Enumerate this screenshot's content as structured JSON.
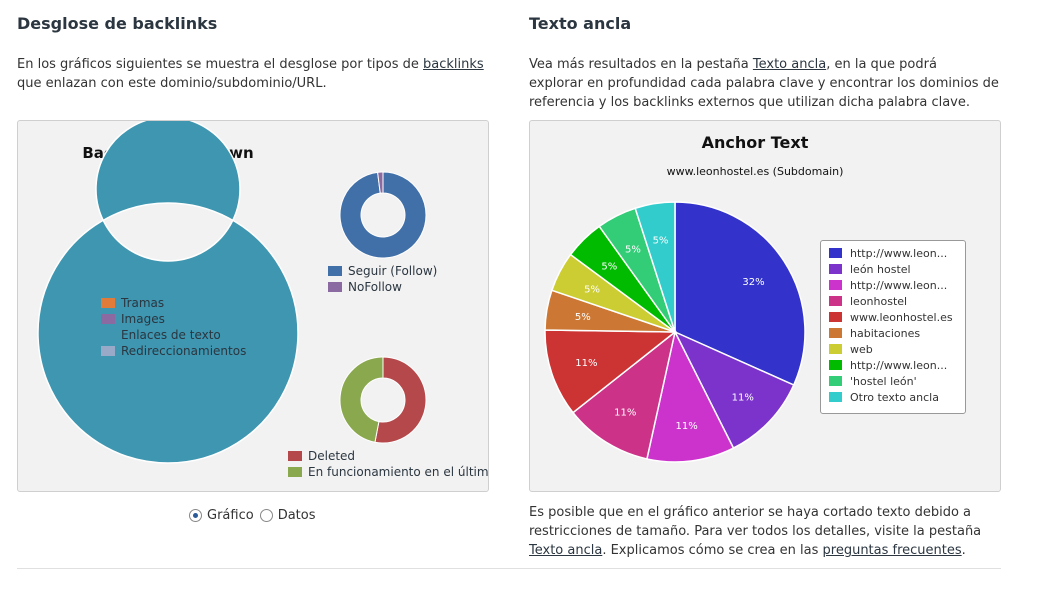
{
  "left": {
    "title": "Desglose de backlinks",
    "desc_part1": "En los gráficos siguientes se muestra el desglose por tipos de ",
    "desc_link": "backlinks",
    "desc_part2": "que enlazan con este dominio/subdominio/URL."
  },
  "right": {
    "title": "Texto ancla",
    "desc_part1": "Vea más resultados en la pestaña ",
    "desc_link": "Texto ancla",
    "desc_part2": ", en la que podrá",
    "desc_line2": "explorar en profundidad cada palabra clave y encontrar los dominios de",
    "desc_line3": "referencia y los backlinks externos que utilizan dicha palabra clave.",
    "after_line1": "Es posible que en el gráfico anterior se haya cortado texto debido a",
    "after_line2": "restricciones de tamaño. Para ver todos los detalles, visite la pestaña",
    "after_link1": "Texto ancla",
    "after_mid": ". Explicamos cómo se crea en las ",
    "after_link2": "preguntas frecuentes",
    "after_end": "."
  },
  "view_toggle": {
    "grafico": "Gráfico",
    "datos": "Datos",
    "selected": "grafico"
  },
  "colors": {
    "title": "#2b3640",
    "panel_bg": "#f2f2f2"
  },
  "chart_data": [
    {
      "type": "pie",
      "title": "Backlink Breakdown",
      "subtitle": "",
      "donut": true,
      "slices": [
        {
          "label": "Tramas",
          "value": 0,
          "color": "#e07b39"
        },
        {
          "label": "Images",
          "value": 0,
          "color": "#8a6aa0"
        },
        {
          "label": "Enlaces de texto",
          "value": 100,
          "color": "#3e96b0"
        },
        {
          "label": "Redireccionamientos",
          "value": 0,
          "color": "#99aac9"
        }
      ]
    },
    {
      "type": "pie",
      "title": "",
      "donut": true,
      "slices": [
        {
          "label": "Seguir (Follow)",
          "value": 98,
          "color": "#4170a8"
        },
        {
          "label": "NoFollow",
          "value": 2,
          "color": "#8a6aa0"
        }
      ]
    },
    {
      "type": "pie",
      "title": "",
      "donut": true,
      "slices": [
        {
          "label": "Deleted",
          "value": 53,
          "color": "#b5484a"
        },
        {
          "label": "En funcionamiento en el último mes",
          "value": 47,
          "color": "#8aa84e"
        }
      ]
    },
    {
      "type": "pie",
      "title": "Anchor Text",
      "subtitle": "www.leonhostel.es (Subdomain)",
      "donut": false,
      "slices": [
        {
          "label": "http://www.leon...",
          "value": 32,
          "display": "32%",
          "color": "#3333cc"
        },
        {
          "label": "león hostel",
          "value": 11,
          "display": "11%",
          "color": "#7c33cc"
        },
        {
          "label": "http://www.leon...",
          "value": 11,
          "display": "11%",
          "color": "#cc33cc"
        },
        {
          "label": "leonhostel",
          "value": 11,
          "display": "11%",
          "color": "#cc3388"
        },
        {
          "label": "www.leonhostel.es",
          "value": 11,
          "display": "11%",
          "color": "#cc3333"
        },
        {
          "label": "habitaciones",
          "value": 5,
          "display": "5%",
          "color": "#cc7733"
        },
        {
          "label": "web",
          "value": 5,
          "display": "5%",
          "color": "#cccc33"
        },
        {
          "label": "http://www.leon...",
          "value": 5,
          "display": "5%",
          "color": "#00bb00"
        },
        {
          "label": "'hostel león'",
          "value": 5,
          "display": "5%",
          "color": "#33cc77"
        },
        {
          "label": "Otro texto ancla",
          "value": 5,
          "display": "5%",
          "color": "#33cccc"
        }
      ]
    }
  ]
}
